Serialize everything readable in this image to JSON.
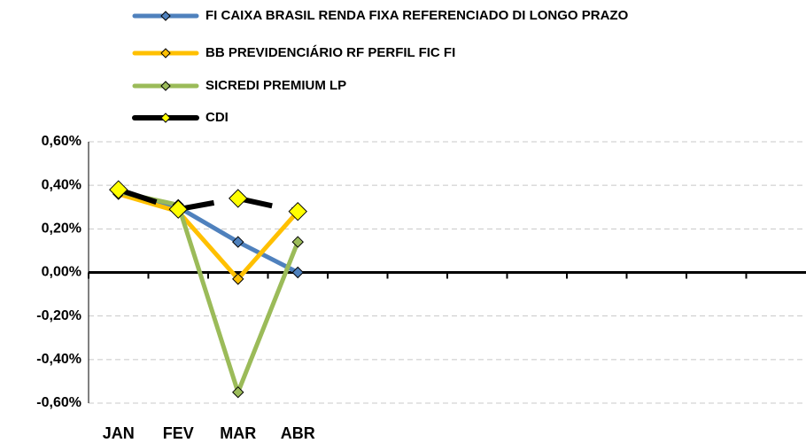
{
  "chart_data": {
    "type": "line",
    "categories": [
      "JAN",
      "FEV",
      "MAR",
      "ABR",
      null,
      null,
      null,
      null,
      null,
      null,
      null,
      null
    ],
    "series": [
      {
        "name": "FI CAIXA BRASIL RENDA FIXA REFERENCIADO DI LONGO PRAZO",
        "color": "#4f81bd",
        "values": [
          0.37,
          0.3,
          0.14,
          0.0,
          null,
          null,
          null,
          null,
          null,
          null,
          null,
          null
        ]
      },
      {
        "name": "BB PREVIDENCIÁRIO RF PERFIL FIC FI",
        "color": "#ffc000",
        "values": [
          0.36,
          0.28,
          -0.03,
          0.28,
          null,
          null,
          null,
          null,
          null,
          null,
          null,
          null
        ]
      },
      {
        "name": "SICREDI PREMIUM LP",
        "color": "#9bbb59",
        "values": [
          0.37,
          0.31,
          -0.55,
          0.14,
          null,
          null,
          null,
          null,
          null,
          null,
          null,
          null
        ]
      },
      {
        "name": "CDI",
        "color": "#000000",
        "marker_color": "#ffff00",
        "values": [
          0.38,
          0.29,
          0.34,
          0.28,
          null,
          null,
          null,
          null,
          null,
          null,
          null,
          null
        ]
      }
    ],
    "ylim": [
      -0.6,
      0.6
    ],
    "yticks": [
      {
        "value": -0.6,
        "label": "-0,60%"
      },
      {
        "value": -0.4,
        "label": "-0,40%"
      },
      {
        "value": -0.2,
        "label": "-0,20%"
      },
      {
        "value": 0,
        "label": "0,00%"
      },
      {
        "value": 0.2,
        "label": "0,20%"
      },
      {
        "value": 0.4,
        "label": "0,40%"
      },
      {
        "value": 0.6,
        "label": "0,60%"
      }
    ],
    "grid": true,
    "legend": "top"
  }
}
